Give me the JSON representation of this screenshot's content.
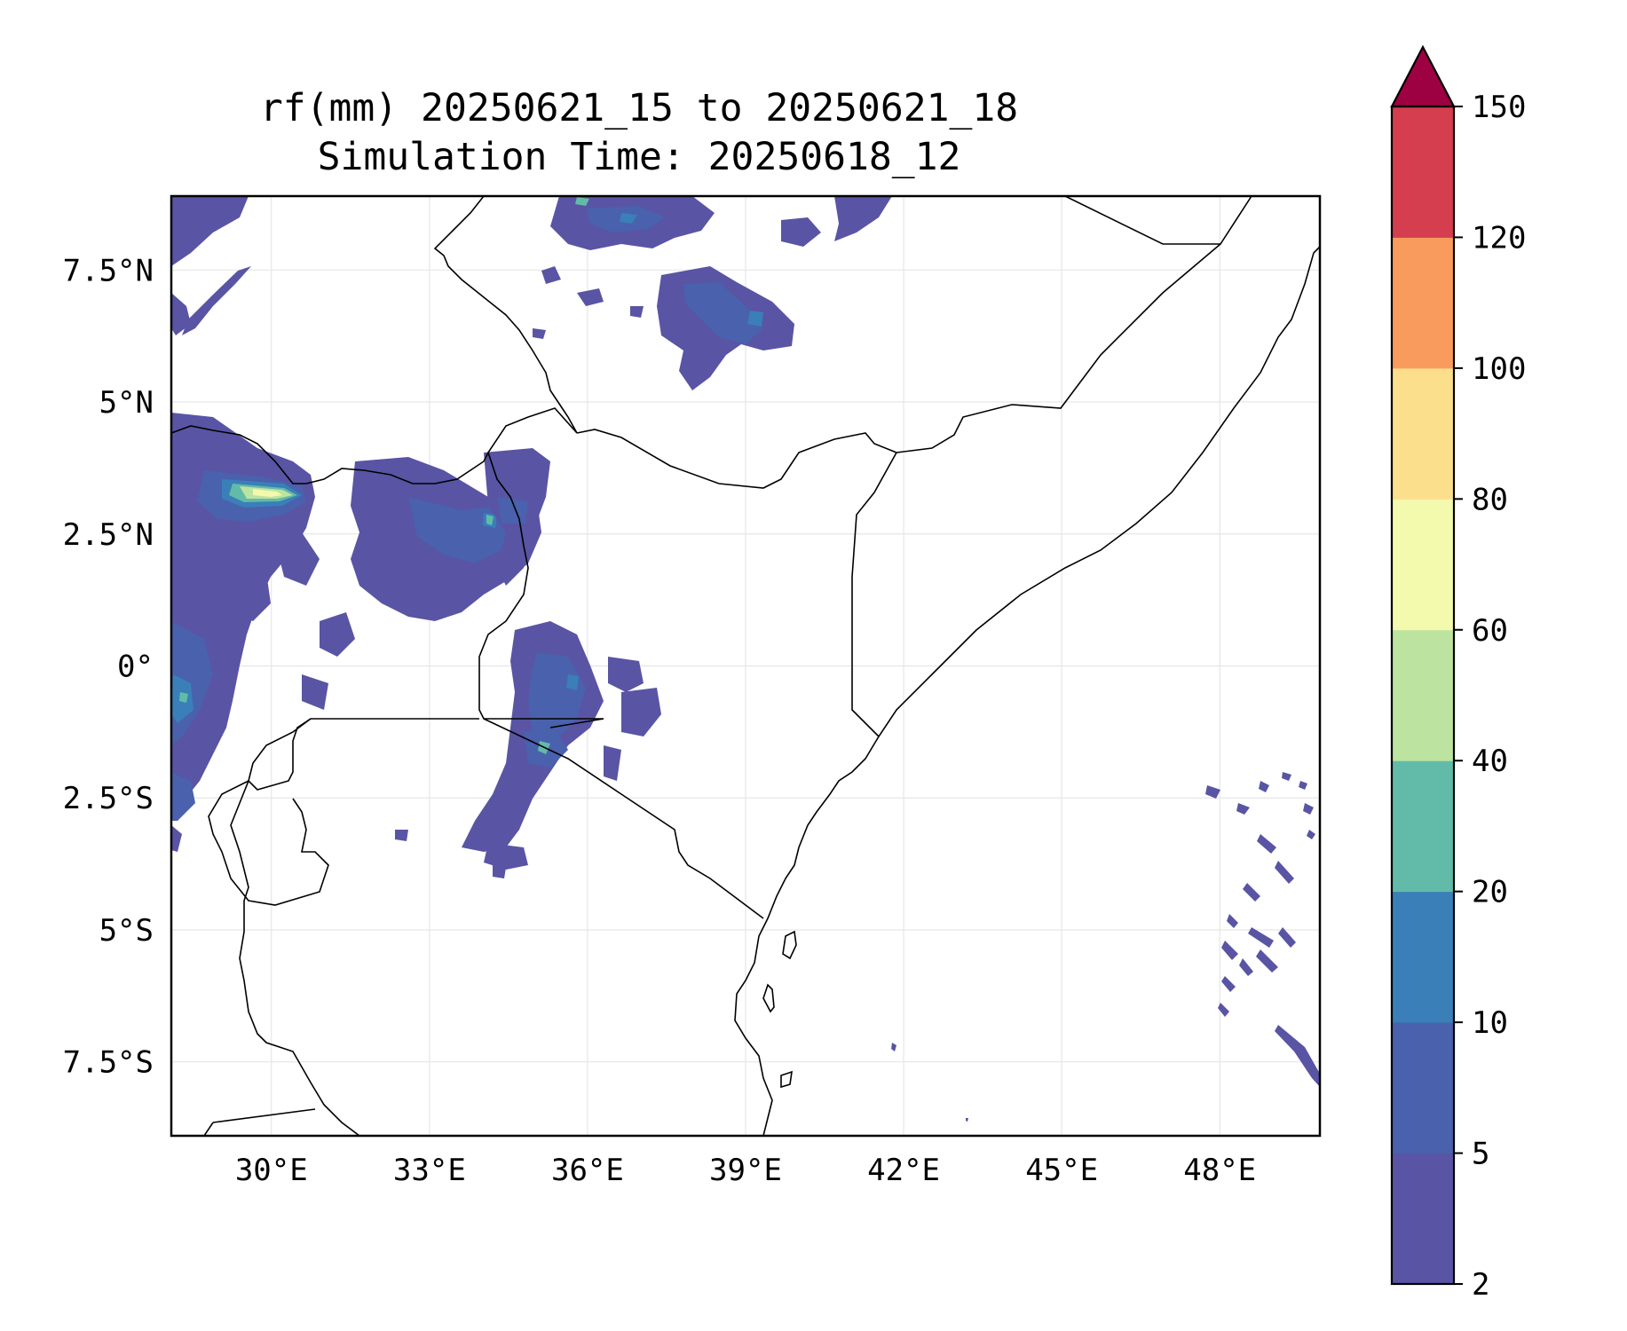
{
  "title": {
    "line1": "rf(mm) 20250621_15 to 20250621_18",
    "line2": "Simulation Time: 20250618_12"
  },
  "map": {
    "lon_range": [
      28.1,
      49.9
    ],
    "lat_range": [
      -8.9,
      8.9
    ],
    "gridlines": true,
    "x_ticks": [
      {
        "value": 30,
        "label": "30°E"
      },
      {
        "value": 33,
        "label": "33°E"
      },
      {
        "value": 36,
        "label": "36°E"
      },
      {
        "value": 39,
        "label": "39°E"
      },
      {
        "value": 42,
        "label": "42°E"
      },
      {
        "value": 45,
        "label": "45°E"
      },
      {
        "value": 48,
        "label": "48°E"
      }
    ],
    "y_ticks": [
      {
        "value": 7.5,
        "label": "7.5°N"
      },
      {
        "value": 5,
        "label": "5°N"
      },
      {
        "value": 2.5,
        "label": "2.5°N"
      },
      {
        "value": 0,
        "label": "0°"
      },
      {
        "value": -2.5,
        "label": "2.5°S"
      },
      {
        "value": -5,
        "label": "5°S"
      },
      {
        "value": -7.5,
        "label": "7.5°S"
      }
    ]
  },
  "colorbar": {
    "levels": [
      2,
      5,
      10,
      20,
      40,
      60,
      80,
      100,
      120,
      150
    ],
    "labels": [
      "2",
      "5",
      "10",
      "20",
      "40",
      "60",
      "80",
      "100",
      "120",
      "150"
    ],
    "colors": [
      "#5954a4",
      "#4a61ad",
      "#3a7fb8",
      "#62bba9",
      "#bde3a0",
      "#f3f9ad",
      "#fbdf8c",
      "#f99b5c",
      "#d53e4f"
    ],
    "extend_color": "#9e0142",
    "extend": "max"
  },
  "rain_colors": {
    "light": "#5954a4",
    "moderate": "#4a61ad",
    "heavy": "#3a7fb8",
    "very_heavy": "#62bba9",
    "extreme": "#bde3a0",
    "peak": "#f3f9ad"
  }
}
